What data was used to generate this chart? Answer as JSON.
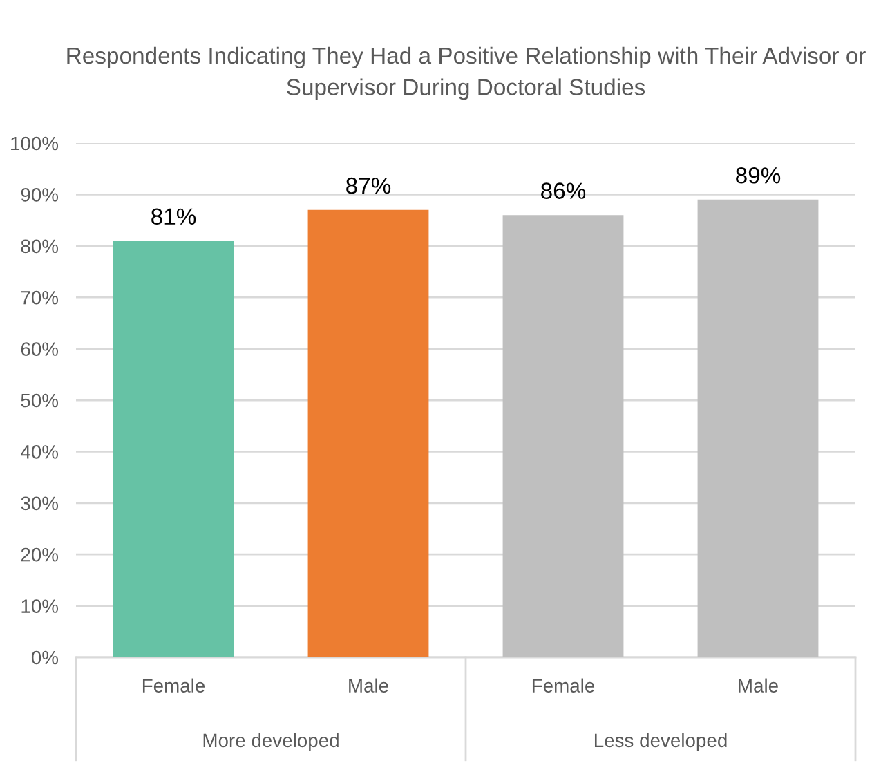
{
  "chart_data": {
    "type": "bar",
    "title": "Respondents Indicating They Had a Positive Relationship with Their Advisor or\nSupervisor During Doctoral Studies",
    "categories": [
      "Female",
      "Male",
      "Female",
      "Male"
    ],
    "values": [
      81,
      87,
      86,
      89
    ],
    "colors": [
      "#66c2a5",
      "#ed7d31",
      "#bfbfbf",
      "#bfbfbf"
    ],
    "value_labels": [
      "81%",
      "87%",
      "86%",
      "89%"
    ],
    "ylim": [
      0,
      100
    ],
    "yticks": [
      {
        "value": 0,
        "label": "0%"
      },
      {
        "value": 10,
        "label": "10%"
      },
      {
        "value": 20,
        "label": "20%"
      },
      {
        "value": 30,
        "label": "30%"
      },
      {
        "value": 40,
        "label": "40%"
      },
      {
        "value": 50,
        "label": "50%"
      },
      {
        "value": 60,
        "label": "60%"
      },
      {
        "value": 70,
        "label": "70%"
      },
      {
        "value": 80,
        "label": "80%"
      },
      {
        "value": 90,
        "label": "90%"
      },
      {
        "value": 100,
        "label": "100%"
      }
    ],
    "grid": "y",
    "annotations": [
      "More developed",
      "Less developed"
    ]
  }
}
